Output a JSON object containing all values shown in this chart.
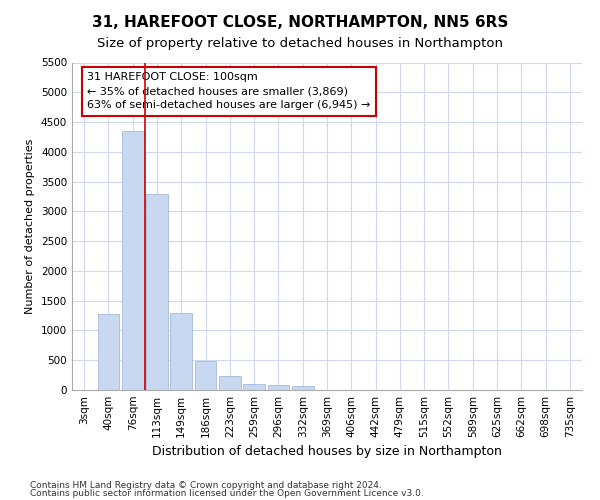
{
  "title": "31, HAREFOOT CLOSE, NORTHAMPTON, NN5 6RS",
  "subtitle": "Size of property relative to detached houses in Northampton",
  "xlabel": "Distribution of detached houses by size in Northampton",
  "ylabel": "Number of detached properties",
  "categories": [
    "3sqm",
    "40sqm",
    "76sqm",
    "113sqm",
    "149sqm",
    "186sqm",
    "223sqm",
    "259sqm",
    "296sqm",
    "332sqm",
    "369sqm",
    "406sqm",
    "442sqm",
    "479sqm",
    "515sqm",
    "552sqm",
    "589sqm",
    "625sqm",
    "662sqm",
    "698sqm",
    "735sqm"
  ],
  "values": [
    0,
    1270,
    4350,
    3300,
    1290,
    480,
    240,
    100,
    80,
    60,
    0,
    0,
    0,
    0,
    0,
    0,
    0,
    0,
    0,
    0,
    0
  ],
  "bar_color": "#c8d8f0",
  "bar_edge_color": "#9ab0d0",
  "vline_color": "#cc0000",
  "vline_x": 2.5,
  "annotation_text": "31 HAREFOOT CLOSE: 100sqm\n← 35% of detached houses are smaller (3,869)\n63% of semi-detached houses are larger (6,945) →",
  "annotation_box_color": "white",
  "annotation_box_edge": "#cc0000",
  "ylim": [
    0,
    5500
  ],
  "yticks": [
    0,
    500,
    1000,
    1500,
    2000,
    2500,
    3000,
    3500,
    4000,
    4500,
    5000,
    5500
  ],
  "footnote1": "Contains HM Land Registry data © Crown copyright and database right 2024.",
  "footnote2": "Contains public sector information licensed under the Open Government Licence v3.0.",
  "title_fontsize": 11,
  "subtitle_fontsize": 9.5,
  "xlabel_fontsize": 9,
  "ylabel_fontsize": 8,
  "tick_fontsize": 7.5,
  "annot_fontsize": 8,
  "footnote_fontsize": 6.5,
  "bg_color": "#ffffff",
  "grid_color": "#d0d8f0"
}
